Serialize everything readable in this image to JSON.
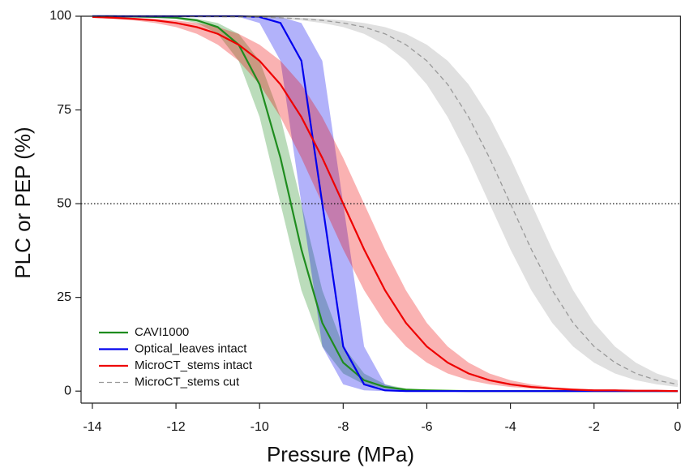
{
  "chart_data": {
    "type": "line",
    "xlabel": "Pressure (MPa)",
    "ylabel": "PLC or PEP (%)",
    "xlim": [
      -14.27,
      0.08
    ],
    "ylim": [
      -3.2,
      100
    ],
    "xticks": [
      -14,
      -12,
      -10,
      -8,
      -6,
      -4,
      -2,
      0
    ],
    "yticks": [
      0,
      25,
      50,
      75,
      100
    ],
    "hline": 50,
    "legend": "lower-left",
    "x": [
      -14,
      -13.5,
      -13,
      -12.5,
      -12,
      -11.5,
      -11,
      -10.5,
      -10,
      -9.5,
      -9,
      -8.5,
      -8,
      -7.5,
      -7,
      -6.5,
      -6,
      -5.5,
      -5,
      -4.5,
      -4,
      -3.5,
      -3,
      -2.5,
      -2,
      -1.5,
      -1,
      -0.5,
      0
    ],
    "series": [
      {
        "name": "CAVI1000",
        "color": "#1e8c1e",
        "dashed": false,
        "values": [
          100,
          100,
          99.9,
          99.8,
          99.6,
          98.9,
          97.1,
          92.4,
          81.8,
          62.2,
          37.8,
          18.2,
          7.6,
          2.9,
          1.1,
          0.4,
          0.2,
          0.1,
          0,
          0,
          0,
          0,
          0,
          0,
          0,
          0,
          0,
          0,
          0
        ],
        "upper": [
          100,
          100,
          100,
          99.9,
          99.8,
          99.3,
          98.2,
          95.3,
          88.1,
          73.1,
          50,
          26.9,
          11.9,
          4.7,
          1.8,
          0.7,
          0.2,
          0.1,
          0,
          0,
          0,
          0,
          0,
          0,
          0,
          0,
          0,
          0,
          0
        ],
        "lower": [
          100,
          100,
          99.9,
          99.8,
          99.3,
          98.2,
          95.3,
          88.1,
          73.1,
          50,
          26.9,
          11.9,
          4.7,
          1.8,
          0.7,
          0.2,
          0.1,
          0,
          0,
          0,
          0,
          0,
          0,
          0,
          0,
          0,
          0,
          0,
          0
        ]
      },
      {
        "name": "Optical_leaves intact",
        "color": "#0000ee",
        "dashed": false,
        "values": [
          100,
          100,
          100,
          100,
          100,
          100,
          100,
          100,
          99.8,
          98.2,
          88.1,
          50,
          11.9,
          1.8,
          0.2,
          0,
          0,
          0,
          0,
          0,
          0,
          0,
          0,
          0,
          0,
          0,
          0,
          0,
          0
        ],
        "upper": [
          100,
          100,
          100,
          100,
          100,
          100,
          100,
          100,
          100,
          99.8,
          98.2,
          88.1,
          50,
          11.9,
          1.8,
          0.2,
          0,
          0,
          0,
          0,
          0,
          0,
          0,
          0,
          0,
          0,
          0,
          0,
          0
        ],
        "lower": [
          100,
          100,
          100,
          100,
          100,
          100,
          100,
          99.8,
          98.2,
          88.1,
          50,
          11.9,
          1.8,
          0.2,
          0,
          0,
          0,
          0,
          0,
          0,
          0,
          0,
          0,
          0,
          0,
          0,
          0,
          0,
          0
        ]
      },
      {
        "name": "MicroCT_stems intact",
        "color": "#ee0000",
        "dashed": false,
        "values": [
          99.8,
          99.6,
          99.3,
          98.9,
          98.2,
          97.1,
          95.3,
          92.4,
          88.1,
          81.8,
          73.1,
          62.2,
          50,
          37.8,
          26.9,
          18.2,
          11.9,
          7.6,
          4.7,
          2.9,
          1.8,
          1.1,
          0.7,
          0.4,
          0.2,
          0.2,
          0.1,
          0.1,
          0
        ],
        "upper": [
          99.8,
          99.8,
          99.6,
          99.3,
          98.9,
          98.2,
          97.1,
          95.3,
          92.4,
          88.1,
          81.8,
          73.1,
          62.2,
          50,
          37.8,
          26.9,
          18.2,
          11.9,
          7.6,
          4.7,
          2.9,
          1.8,
          1.1,
          0.7,
          0.4,
          0.2,
          0.2,
          0.1,
          0.1
        ],
        "lower": [
          99.6,
          99.3,
          98.9,
          98.2,
          97.1,
          95.3,
          92.4,
          88.1,
          81.8,
          73.1,
          62.2,
          50,
          37.8,
          26.9,
          18.2,
          11.9,
          7.6,
          4.7,
          2.9,
          1.8,
          1.1,
          0.7,
          0.4,
          0.2,
          0.2,
          0.1,
          0.1,
          0,
          0
        ]
      },
      {
        "name": "MicroCT_stems cut",
        "color": "#999999",
        "dashed": true,
        "values": [
          100,
          100,
          100,
          100,
          100,
          99.9,
          99.9,
          99.8,
          99.8,
          99.6,
          99.3,
          98.9,
          98.2,
          97.1,
          95.3,
          92.4,
          88.1,
          81.8,
          73.1,
          62.2,
          50,
          37.8,
          26.9,
          18.2,
          11.9,
          7.6,
          4.7,
          2.9,
          1.8
        ],
        "upper": [
          100,
          100,
          100,
          100,
          100,
          100,
          99.9,
          99.9,
          99.8,
          99.8,
          99.6,
          99.3,
          98.9,
          98.2,
          97.1,
          95.3,
          92.4,
          88.1,
          81.8,
          73.1,
          62.2,
          50,
          37.8,
          26.9,
          18.2,
          11.9,
          7.6,
          4.7,
          2.9
        ],
        "lower": [
          100,
          100,
          100,
          100,
          99.9,
          99.9,
          99.8,
          99.8,
          99.6,
          99.3,
          98.9,
          98.2,
          97.1,
          95.3,
          92.4,
          88.1,
          81.8,
          73.1,
          62.2,
          50,
          37.8,
          26.9,
          18.2,
          11.9,
          7.6,
          4.7,
          2.9,
          1.8,
          1.1
        ]
      }
    ]
  }
}
